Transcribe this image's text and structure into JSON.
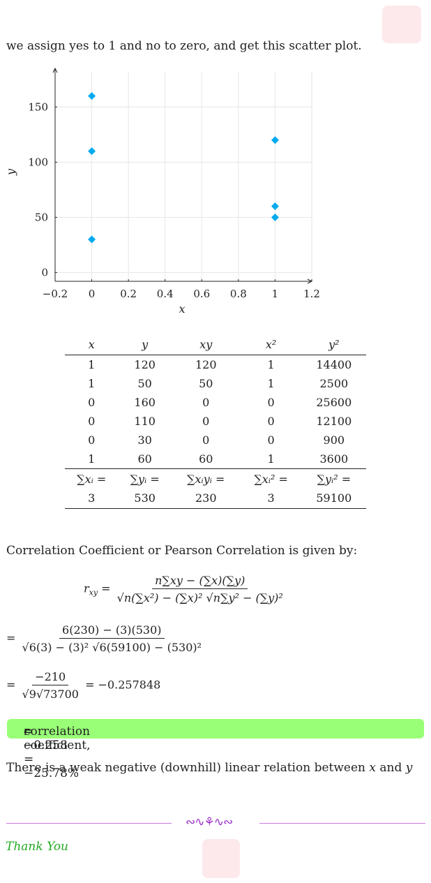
{
  "intro_text": "we assign yes to 1 and no to zero, and get this scatter plot.",
  "chart_data": {
    "type": "scatter",
    "xlabel": "x",
    "ylabel": "y",
    "xlim": [
      -0.2,
      1.2
    ],
    "ylim": [
      -8,
      185
    ],
    "xticks": [
      "−0.2",
      "0",
      "0.2",
      "0.4",
      "0.6",
      "0.8",
      "1",
      "1.2"
    ],
    "yticks": [
      "0",
      "50",
      "100",
      "150"
    ],
    "grid": true,
    "marker_color": "#00aaee",
    "marker": "diamond",
    "points": [
      {
        "x": 0,
        "y": 160
      },
      {
        "x": 0,
        "y": 110
      },
      {
        "x": 0,
        "y": 30
      },
      {
        "x": 1,
        "y": 120
      },
      {
        "x": 1,
        "y": 60
      },
      {
        "x": 1,
        "y": 50
      }
    ]
  },
  "table": {
    "headers": [
      "x",
      "y",
      "xy",
      "x²",
      "y²"
    ],
    "rows": [
      [
        "1",
        "120",
        "120",
        "1",
        "14400"
      ],
      [
        "1",
        "50",
        "50",
        "1",
        "2500"
      ],
      [
        "0",
        "160",
        "0",
        "0",
        "25600"
      ],
      [
        "0",
        "110",
        "0",
        "0",
        "12100"
      ],
      [
        "0",
        "30",
        "0",
        "0",
        "900"
      ],
      [
        "1",
        "60",
        "60",
        "1",
        "3600"
      ]
    ],
    "sum_labels": [
      "∑xᵢ =",
      "∑yᵢ =",
      "∑xᵢyᵢ =",
      "∑xᵢ² =",
      "∑yᵢ² ="
    ],
    "sums": [
      "3",
      "530",
      "230",
      "3",
      "59100"
    ]
  },
  "correlation_intro": "Correlation Coefficient or Pearson Correlation is given by:",
  "formula": {
    "lhs": "r",
    "lhs_sub": "xy",
    "numerator": "n∑xy − (∑x)(∑y)",
    "denominator": "√n(∑x²) − (∑x)² √n∑y² − (∑y)²"
  },
  "step1": {
    "numerator": "6(230) − (3)(530)",
    "denominator": "√6(3) − (3)² √6(59100) − (530)²"
  },
  "step2": {
    "numerator": "−210",
    "denominator": "√9√73700",
    "result": "= −0.257848"
  },
  "highlight": {
    "text": "correlation coefficient, ",
    "var": "r",
    "value": " = −0.258 = −25.78%",
    "color": "#99ff77"
  },
  "conclusion": {
    "before": "There is a weak negative (downhill) linear relation between ",
    "var1": "x",
    "middle": " and ",
    "var2": "y"
  },
  "ornament": "∾∿⚘∿∾",
  "thanks": "Thank You"
}
